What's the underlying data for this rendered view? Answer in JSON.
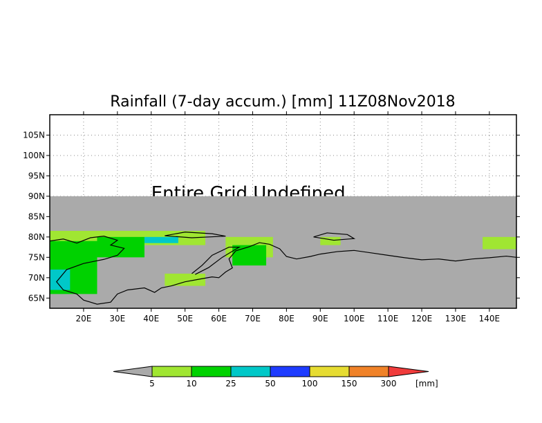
{
  "title": "Rainfall (7-day accum.) [mm] 11Z08Nov2018",
  "overlay_text": "Entire Grid Undefined",
  "map": {
    "lon_range": [
      10,
      148
    ],
    "lat_range": [
      62.5,
      110
    ],
    "undefined_from_lat": 90,
    "undefined_color": "#aaaaaa"
  },
  "lat_ticks": [
    {
      "value": 65,
      "label": "65N"
    },
    {
      "value": 70,
      "label": "70N"
    },
    {
      "value": 75,
      "label": "75N"
    },
    {
      "value": 80,
      "label": "80N"
    },
    {
      "value": 85,
      "label": "85N"
    },
    {
      "value": 90,
      "label": "90N"
    },
    {
      "value": 95,
      "label": "95N"
    },
    {
      "value": 100,
      "label": "100N"
    },
    {
      "value": 105,
      "label": "105N"
    }
  ],
  "lon_ticks": [
    {
      "value": 20,
      "label": "20E"
    },
    {
      "value": 30,
      "label": "30E"
    },
    {
      "value": 40,
      "label": "40E"
    },
    {
      "value": 50,
      "label": "50E"
    },
    {
      "value": 60,
      "label": "60E"
    },
    {
      "value": 70,
      "label": "70E"
    },
    {
      "value": 80,
      "label": "80E"
    },
    {
      "value": 90,
      "label": "90E"
    },
    {
      "value": 100,
      "label": "100E"
    },
    {
      "value": 110,
      "label": "110E"
    },
    {
      "value": 120,
      "label": "120E"
    },
    {
      "value": 130,
      "label": "130E"
    },
    {
      "value": 140,
      "label": "140E"
    }
  ],
  "colorbar": {
    "unit": "[mm]",
    "under_color": "#aaaaaa",
    "over_color": "#f03c3c",
    "bins": [
      {
        "color": "#a0e632"
      },
      {
        "color": "#00d200"
      },
      {
        "color": "#00c8c8"
      },
      {
        "color": "#1e3cff"
      },
      {
        "color": "#e6dc32"
      },
      {
        "color": "#f08228"
      }
    ],
    "labels": [
      "5",
      "10",
      "25",
      "50",
      "100",
      "150",
      "300"
    ]
  },
  "rain_areas": [
    {
      "color": "#a0e632",
      "lon": [
        10,
        36
      ],
      "lat": [
        76,
        81.5
      ]
    },
    {
      "color": "#a0e632",
      "lon": [
        30,
        56
      ],
      "lat": [
        78,
        81.5
      ]
    },
    {
      "color": "#00d200",
      "lon": [
        10,
        24
      ],
      "lat": [
        66,
        79
      ]
    },
    {
      "color": "#00d200",
      "lon": [
        24,
        38
      ],
      "lat": [
        75,
        80
      ]
    },
    {
      "color": "#00c8c8",
      "lon": [
        10,
        16
      ],
      "lat": [
        67,
        72
      ]
    },
    {
      "color": "#00c8c8",
      "lon": [
        38,
        48
      ],
      "lat": [
        78.5,
        80
      ]
    },
    {
      "color": "#a0e632",
      "lon": [
        44,
        56
      ],
      "lat": [
        68,
        71
      ]
    },
    {
      "color": "#a0e632",
      "lon": [
        62,
        76
      ],
      "lat": [
        75,
        80
      ]
    },
    {
      "color": "#00d200",
      "lon": [
        64,
        74
      ],
      "lat": [
        73,
        78
      ]
    },
    {
      "color": "#a0e632",
      "lon": [
        90,
        96
      ],
      "lat": [
        78,
        80
      ]
    },
    {
      "color": "#a0e632",
      "lon": [
        138,
        148
      ],
      "lat": [
        77,
        80
      ]
    }
  ]
}
